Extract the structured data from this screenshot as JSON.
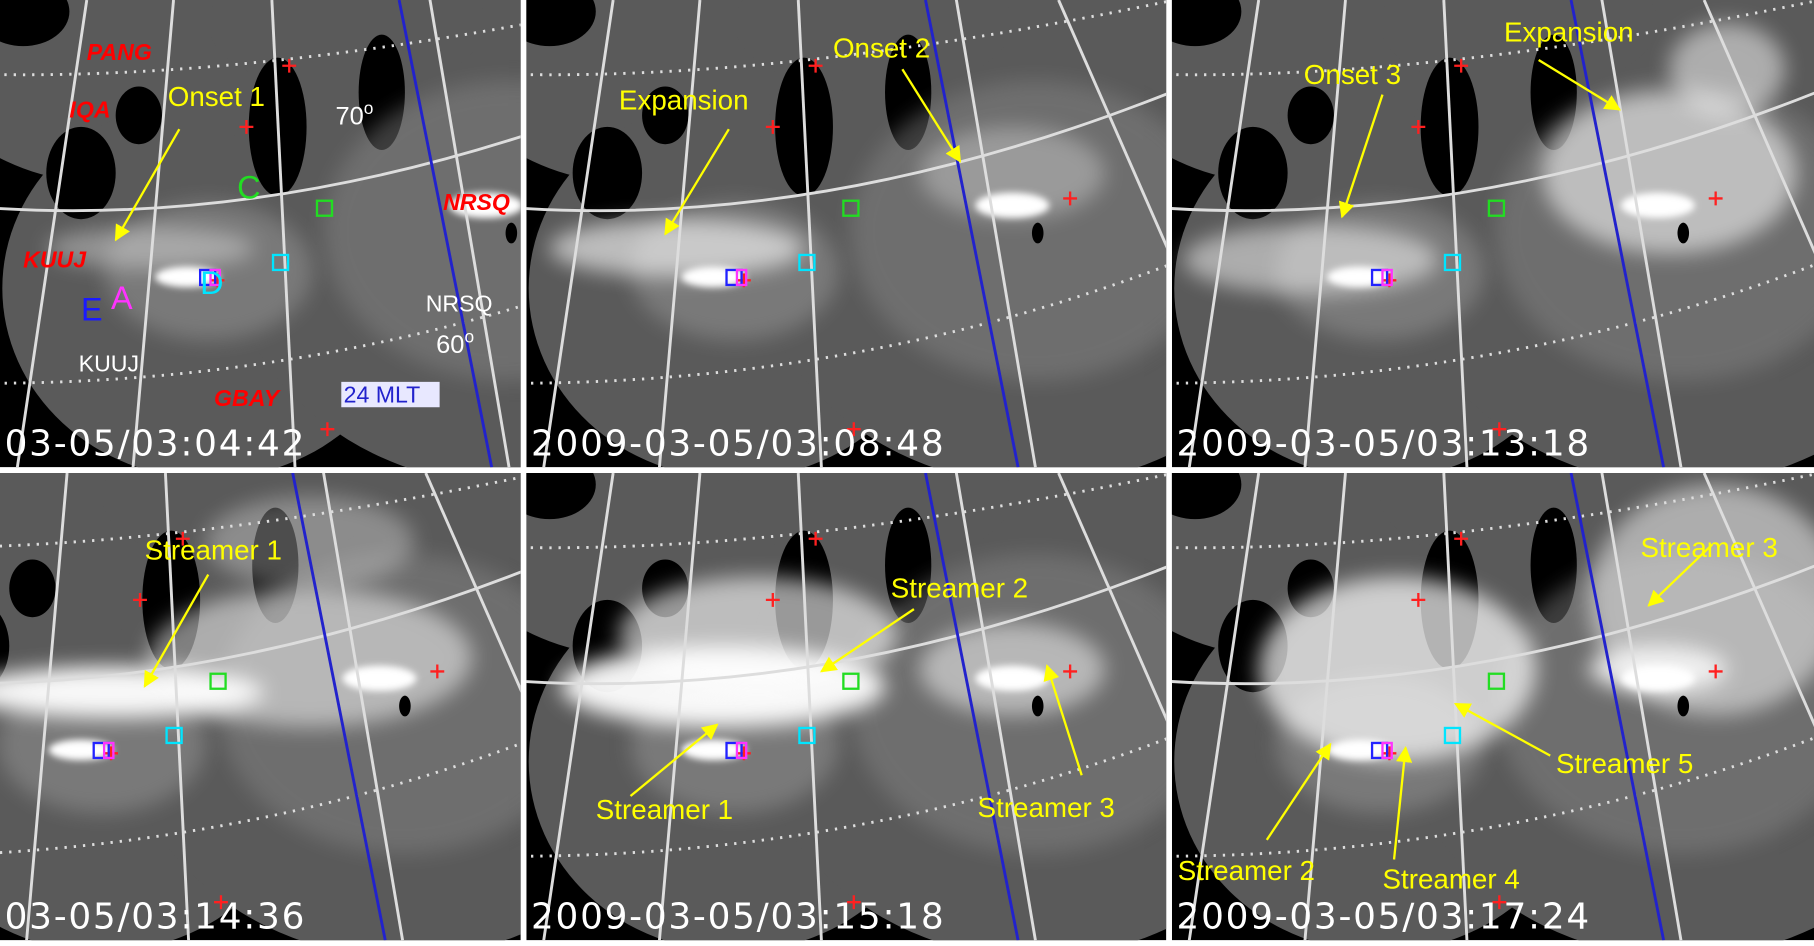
{
  "panels": [
    {
      "timestamp": "03-05/03:04:42",
      "annotations": [
        "Onset 1"
      ],
      "stations": [
        "PANG",
        "IQA",
        "NRSQ",
        "KUUJ",
        "GBAY"
      ],
      "box_labels": [
        "C",
        "D",
        "E",
        "A"
      ],
      "imager_labels": [
        "KUUJ",
        "NRSQ"
      ],
      "latitudes": [
        {
          "text": "70",
          "superscript": "o"
        },
        {
          "text": "60",
          "superscript": "o"
        }
      ],
      "meridian_label": "24 MLT"
    },
    {
      "timestamp": "2009-03-05/03:08:48",
      "annotations": [
        "Expansion",
        "Onset 2"
      ]
    },
    {
      "timestamp": "2009-03-05/03:13:18",
      "annotations": [
        "Onset 3",
        "Expansion"
      ]
    },
    {
      "timestamp": "03-05/03:14:36",
      "annotations": [
        "Streamer 1"
      ]
    },
    {
      "timestamp": "2009-03-05/03:15:18",
      "annotations": [
        "Streamer 2",
        "Streamer 1",
        "Streamer 3"
      ]
    },
    {
      "timestamp": "2009-03-05/03:17:24",
      "annotations": [
        "Streamer 3",
        "Streamer 5",
        "Streamer 2",
        "Streamer 4"
      ]
    }
  ]
}
